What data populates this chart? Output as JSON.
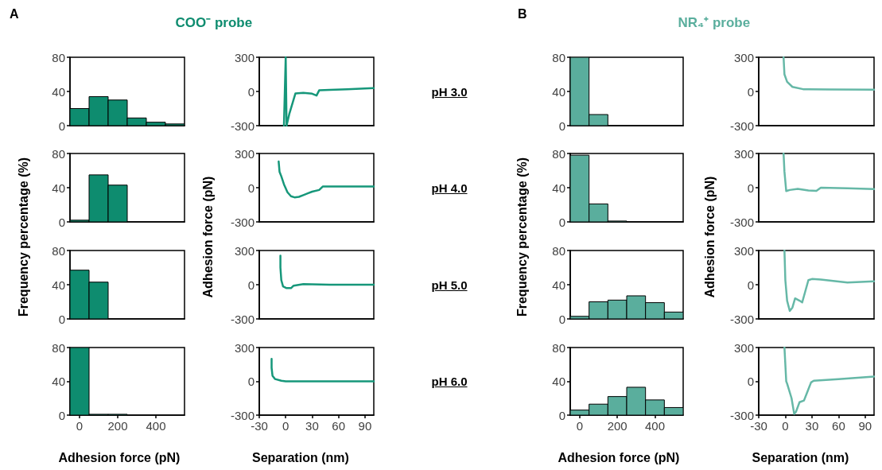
{
  "chart_data": [
    {
      "type": "histogram",
      "title": "COO⁻ probe",
      "ylabel": "Frequency percentage (%)",
      "annotations": [
        "A"
      ],
      "bins": [
        -50,
        50,
        150,
        250,
        350,
        450,
        550
      ],
      "values": [
        20,
        34,
        30,
        9,
        4,
        2
      ],
      "color": "#0e8c6f",
      "xlim": [
        -50,
        550
      ],
      "xticks": [
        0,
        200,
        400
      ],
      "ylim": [
        0,
        80
      ],
      "yticks": [
        0,
        40,
        80
      ],
      "tick_labels": "y"
    },
    {
      "type": "line",
      "ylabel": "Adhesion force (pN)",
      "annotations": [
        "pH 3.0"
      ],
      "x": [
        -2,
        0,
        1,
        4,
        11,
        20,
        30,
        35,
        38,
        50,
        70,
        100
      ],
      "values": [
        -300,
        300,
        -300,
        -200,
        -18,
        -12,
        -20,
        -36,
        10,
        14,
        20,
        30
      ],
      "color": "#16977a",
      "marker": "none",
      "line_style": "solid",
      "xlim": [
        -30,
        100
      ],
      "xticks": [
        -30,
        0,
        30,
        60,
        90
      ],
      "ylim": [
        -300,
        300
      ],
      "yticks": [
        -300,
        0,
        300
      ],
      "tick_labels": "y"
    },
    {
      "type": "histogram",
      "title": "NR₄⁺ probe",
      "ylabel": "Frequency percentage (%)",
      "annotations": [
        "B"
      ],
      "bins": [
        -50,
        50,
        150,
        250,
        350,
        450,
        550
      ],
      "values": [
        80,
        13,
        0,
        0,
        0,
        0
      ],
      "color": "#5aae9d",
      "xlim": [
        -50,
        550
      ],
      "xticks": [
        0,
        200,
        400
      ],
      "ylim": [
        0,
        80
      ],
      "yticks": [
        0,
        40,
        80
      ],
      "tick_labels": "y"
    },
    {
      "type": "line",
      "ylabel": "Adhesion force (pN)",
      "x": [
        -2,
        -1,
        2,
        8,
        20,
        50,
        100
      ],
      "values": [
        300,
        150,
        85,
        40,
        20,
        18,
        15
      ],
      "color": "#66b8a7",
      "marker": "none",
      "line_style": "solid",
      "xlim": [
        -30,
        100
      ],
      "xticks": [
        -30,
        0,
        30,
        60,
        90
      ],
      "ylim": [
        -300,
        300
      ],
      "yticks": [
        -300,
        0,
        300
      ],
      "tick_labels": "y"
    },
    {
      "type": "histogram",
      "bins": [
        -50,
        50,
        150,
        250,
        350,
        450,
        550
      ],
      "values": [
        2,
        55,
        43,
        0,
        0,
        0
      ],
      "color": "#0e8c6f",
      "xlim": [
        -50,
        550
      ],
      "xticks": [
        0,
        200,
        400
      ],
      "ylim": [
        0,
        80
      ],
      "yticks": [
        0,
        40,
        80
      ],
      "tick_labels": "y"
    },
    {
      "type": "line",
      "annotations": [
        "pH 4.0"
      ],
      "x": [
        -8,
        -7,
        -5,
        -2,
        2,
        6,
        10,
        15,
        20,
        25,
        30,
        38,
        42,
        60,
        100
      ],
      "values": [
        230,
        140,
        100,
        30,
        -40,
        -75,
        -85,
        -80,
        -65,
        -50,
        -35,
        -20,
        10,
        10,
        10
      ],
      "color": "#16977a",
      "marker": "none",
      "line_style": "solid",
      "xlim": [
        -30,
        100
      ],
      "xticks": [
        -30,
        0,
        30,
        60,
        90
      ],
      "ylim": [
        -300,
        300
      ],
      "yticks": [
        -300,
        0,
        300
      ],
      "tick_labels": "y"
    },
    {
      "type": "histogram",
      "bins": [
        -50,
        50,
        150,
        250,
        350,
        450,
        550
      ],
      "values": [
        78,
        21,
        1,
        0,
        0,
        0
      ],
      "color": "#5aae9d",
      "xlim": [
        -50,
        550
      ],
      "xticks": [
        0,
        200,
        400
      ],
      "ylim": [
        0,
        80
      ],
      "yticks": [
        0,
        40,
        80
      ],
      "tick_labels": "y"
    },
    {
      "type": "line",
      "x": [
        -2,
        -1,
        1,
        5,
        14,
        26,
        35,
        40,
        70,
        100
      ],
      "values": [
        300,
        140,
        -30,
        -20,
        -10,
        -25,
        -28,
        0,
        -5,
        -12
      ],
      "color": "#66b8a7",
      "marker": "none",
      "line_style": "solid",
      "xlim": [
        -30,
        100
      ],
      "xticks": [
        -30,
        0,
        30,
        60,
        90
      ],
      "ylim": [
        -300,
        300
      ],
      "yticks": [
        -300,
        0,
        300
      ],
      "tick_labels": "y"
    },
    {
      "type": "histogram",
      "bins": [
        -50,
        50,
        150,
        250,
        350,
        450,
        550
      ],
      "values": [
        57,
        43,
        0,
        0,
        0,
        0
      ],
      "color": "#0e8c6f",
      "xlim": [
        -50,
        550
      ],
      "xticks": [
        0,
        200,
        400
      ],
      "ylim": [
        0,
        80
      ],
      "yticks": [
        0,
        40,
        80
      ],
      "tick_labels": "y"
    },
    {
      "type": "line",
      "annotations": [
        "pH 5.0"
      ],
      "x": [
        -6,
        -6,
        -5,
        -3,
        1,
        6,
        9,
        20,
        50,
        100
      ],
      "values": [
        255,
        150,
        40,
        -15,
        -30,
        -30,
        -8,
        5,
        0,
        0
      ],
      "color": "#16977a",
      "marker": "none",
      "line_style": "solid",
      "xlim": [
        -30,
        100
      ],
      "xticks": [
        -30,
        0,
        30,
        60,
        90
      ],
      "ylim": [
        -300,
        300
      ],
      "yticks": [
        -300,
        0,
        300
      ],
      "tick_labels": "y"
    },
    {
      "type": "histogram",
      "bins": [
        -50,
        50,
        150,
        250,
        350,
        450,
        550
      ],
      "values": [
        3,
        20,
        22,
        27,
        19,
        8
      ],
      "color": "#5aae9d",
      "xlim": [
        -50,
        550
      ],
      "xticks": [
        0,
        200,
        400
      ],
      "ylim": [
        0,
        80
      ],
      "yticks": [
        0,
        40,
        80
      ],
      "tick_labels": "y"
    },
    {
      "type": "line",
      "x": [
        -1,
        0,
        2,
        5,
        8,
        11,
        16,
        19,
        26,
        30,
        40,
        70,
        100
      ],
      "values": [
        300,
        40,
        -140,
        -230,
        -200,
        -120,
        -140,
        -155,
        40,
        50,
        45,
        20,
        30
      ],
      "color": "#66b8a7",
      "marker": "none",
      "line_style": "solid",
      "xlim": [
        -30,
        100
      ],
      "xticks": [
        -30,
        0,
        30,
        60,
        90
      ],
      "ylim": [
        -300,
        300
      ],
      "yticks": [
        -300,
        0,
        300
      ],
      "tick_labels": "y"
    },
    {
      "type": "histogram",
      "xlabel": "Adhesion force (pN)",
      "bins": [
        -50,
        50,
        150,
        250,
        350,
        450,
        550
      ],
      "values": [
        80,
        1,
        1,
        0,
        0,
        0
      ],
      "color": "#0e8c6f",
      "xlim": [
        -50,
        550
      ],
      "xticks": [
        0,
        200,
        400
      ],
      "ylim": [
        0,
        80
      ],
      "yticks": [
        0,
        40,
        80
      ]
    },
    {
      "type": "line",
      "xlabel": "Separation (nm)",
      "annotations": [
        "pH 6.0"
      ],
      "x": [
        -16,
        -16,
        -15,
        -12,
        -5,
        0,
        50,
        100
      ],
      "values": [
        200,
        120,
        50,
        20,
        5,
        0,
        0,
        0
      ],
      "color": "#16977a",
      "marker": "none",
      "line_style": "solid",
      "xlim": [
        -30,
        100
      ],
      "xticks": [
        -30,
        0,
        30,
        60,
        90
      ],
      "ylim": [
        -300,
        300
      ],
      "yticks": [
        -300,
        0,
        300
      ]
    },
    {
      "type": "histogram",
      "xlabel": "Adhesion force (pN)",
      "bins": [
        -50,
        50,
        150,
        250,
        350,
        450,
        550
      ],
      "values": [
        6,
        13,
        22,
        33,
        18,
        9
      ],
      "color": "#5aae9d",
      "xlim": [
        -50,
        550
      ],
      "xticks": [
        0,
        200,
        400
      ],
      "ylim": [
        0,
        80
      ],
      "yticks": [
        0,
        40,
        80
      ]
    },
    {
      "type": "line",
      "xlabel": "Separation (nm)",
      "x": [
        -1,
        1,
        2,
        7,
        10,
        12,
        16,
        21,
        29,
        32,
        60,
        100
      ],
      "values": [
        300,
        0,
        -20,
        -150,
        -290,
        -270,
        -185,
        -170,
        -10,
        5,
        20,
        42
      ],
      "color": "#66b8a7",
      "marker": "none",
      "line_style": "solid",
      "xlim": [
        -30,
        100
      ],
      "xticks": [
        -30,
        0,
        30,
        60,
        90
      ],
      "ylim": [
        -300,
        300
      ],
      "yticks": [
        -300,
        0,
        300
      ]
    }
  ]
}
